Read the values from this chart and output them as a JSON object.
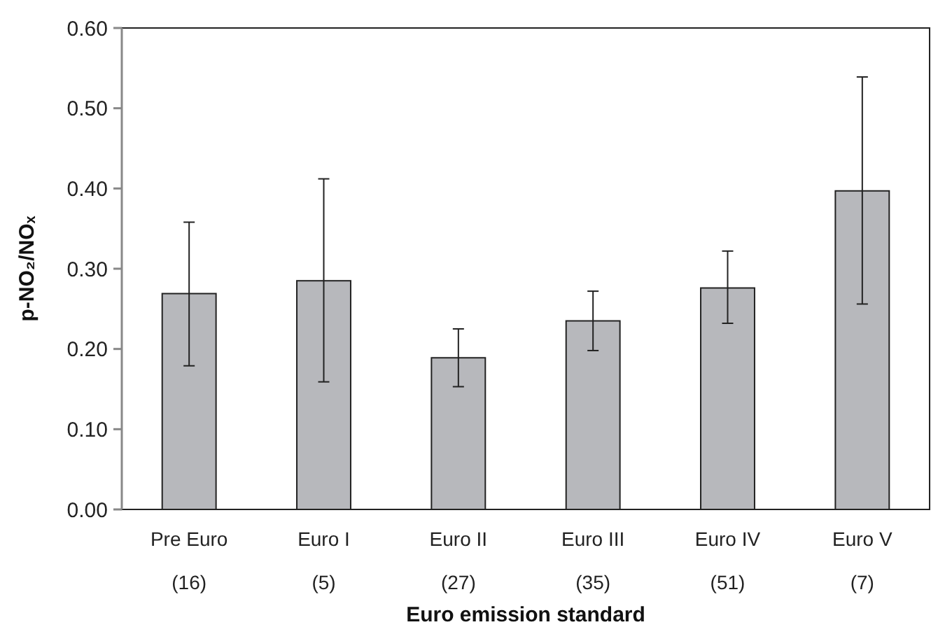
{
  "chart_data": {
    "type": "bar",
    "xlabel": "Euro emission standard",
    "ylabel": "p-NO₂/NOₓ",
    "categories": [
      "Pre Euro\n(16)",
      "Euro I\n(5)",
      "Euro II\n(27)",
      "Euro III\n(35)",
      "Euro IV\n(51)",
      "Euro V\n(7)"
    ],
    "values": [
      0.269,
      0.285,
      0.189,
      0.235,
      0.276,
      0.397
    ],
    "errors": [
      [
        0.179,
        0.358
      ],
      [
        0.159,
        0.412
      ],
      [
        0.153,
        0.225
      ],
      [
        0.198,
        0.272
      ],
      [
        0.232,
        0.322
      ],
      [
        0.256,
        0.539
      ]
    ],
    "color": "#b7b8bc",
    "ylim": [
      0,
      0.6
    ],
    "yticks": [
      {
        "value": 0,
        "label": "0.00"
      },
      {
        "value": 0.1,
        "label": "0.10"
      },
      {
        "value": 0.2,
        "label": "0.20"
      },
      {
        "value": 0.3,
        "label": "0.30"
      },
      {
        "value": 0.4,
        "label": "0.40"
      },
      {
        "value": 0.5,
        "label": "0.50"
      },
      {
        "value": 0.6,
        "label": "0.60"
      }
    ],
    "grid": false
  }
}
